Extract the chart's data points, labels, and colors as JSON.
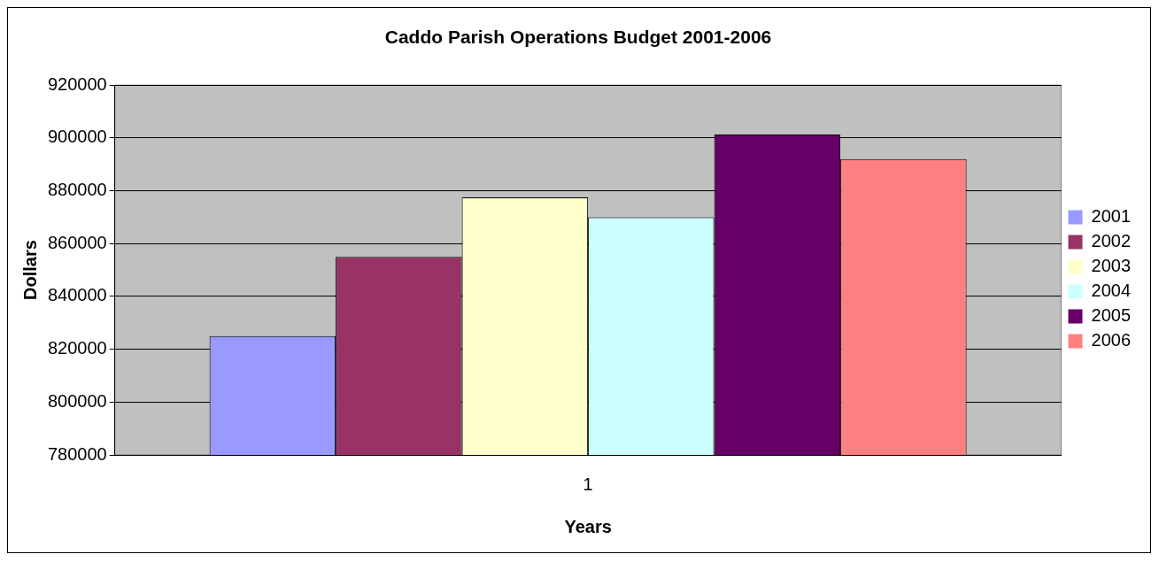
{
  "chart_data": {
    "type": "bar",
    "title": "Caddo Parish Operations Budget 2001-2006",
    "xlabel": "Years",
    "ylabel": "Dollars",
    "categories": [
      "1"
    ],
    "ylim": [
      780000,
      920000
    ],
    "yticks": [
      780000,
      800000,
      820000,
      840000,
      860000,
      880000,
      900000,
      920000
    ],
    "grid": "y",
    "legend": "right",
    "series": [
      {
        "name": "2001",
        "color": "#9999ff",
        "values": [
          825000
        ]
      },
      {
        "name": "2002",
        "color": "#993366",
        "values": [
          855000
        ]
      },
      {
        "name": "2003",
        "color": "#ffffcc",
        "values": [
          877500
        ]
      },
      {
        "name": "2004",
        "color": "#ccffff",
        "values": [
          870000
        ]
      },
      {
        "name": "2005",
        "color": "#660066",
        "values": [
          901300
        ]
      },
      {
        "name": "2006",
        "color": "#ff8080",
        "values": [
          892000
        ]
      }
    ]
  }
}
